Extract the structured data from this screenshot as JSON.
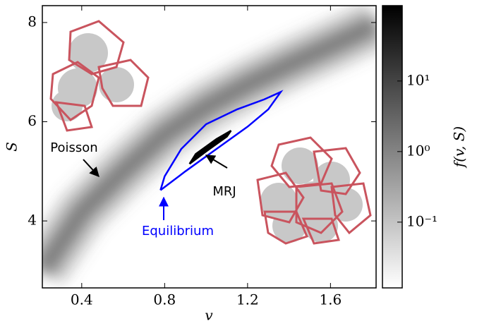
{
  "chart_data": {
    "type": "density",
    "x_label": "v",
    "y_label": "S",
    "xlim": [
      0.21,
      1.82
    ],
    "ylim": [
      2.65,
      8.34
    ],
    "xticks": [
      0.4,
      0.8,
      1.2,
      1.6
    ],
    "yticks": [
      4,
      6,
      8
    ],
    "colorbar": {
      "label": "f(v, S)",
      "scale": "log",
      "lim": [
        0.0117,
        117
      ],
      "colors": [
        "#ffffff",
        "#000000"
      ],
      "ticks": [
        {
          "value": 0.1,
          "label": "10⁻¹"
        },
        {
          "value": 1,
          "label": "10⁰"
        },
        {
          "value": 10,
          "label": "10¹"
        }
      ]
    },
    "series": [
      {
        "name": "Poisson",
        "color": "#6a6a6a",
        "x": [
          0.21,
          0.4,
          0.6,
          0.8,
          1.0,
          1.2,
          1.4,
          1.6,
          1.82
        ],
        "y": [
          3.0,
          4.18,
          5.0,
          5.75,
          6.3,
          6.75,
          7.15,
          7.53,
          7.96
        ]
      },
      {
        "name": "Equilibrium",
        "color": "#0000ff",
        "x": [
          0.78,
          0.9,
          1.05,
          1.2,
          1.3,
          1.36,
          1.28,
          1.15,
          1.0,
          0.88,
          0.8,
          0.78
        ],
        "y": [
          4.62,
          5.0,
          5.45,
          5.9,
          6.25,
          6.6,
          6.45,
          6.25,
          5.95,
          5.45,
          4.9,
          4.62
        ]
      },
      {
        "name": "MRJ",
        "color": "#000000",
        "x": [
          0.92,
          1.0,
          1.1,
          1.12,
          1.05,
          0.95,
          0.92
        ],
        "y": [
          5.15,
          5.4,
          5.7,
          5.82,
          5.65,
          5.35,
          5.15
        ]
      }
    ]
  }
}
